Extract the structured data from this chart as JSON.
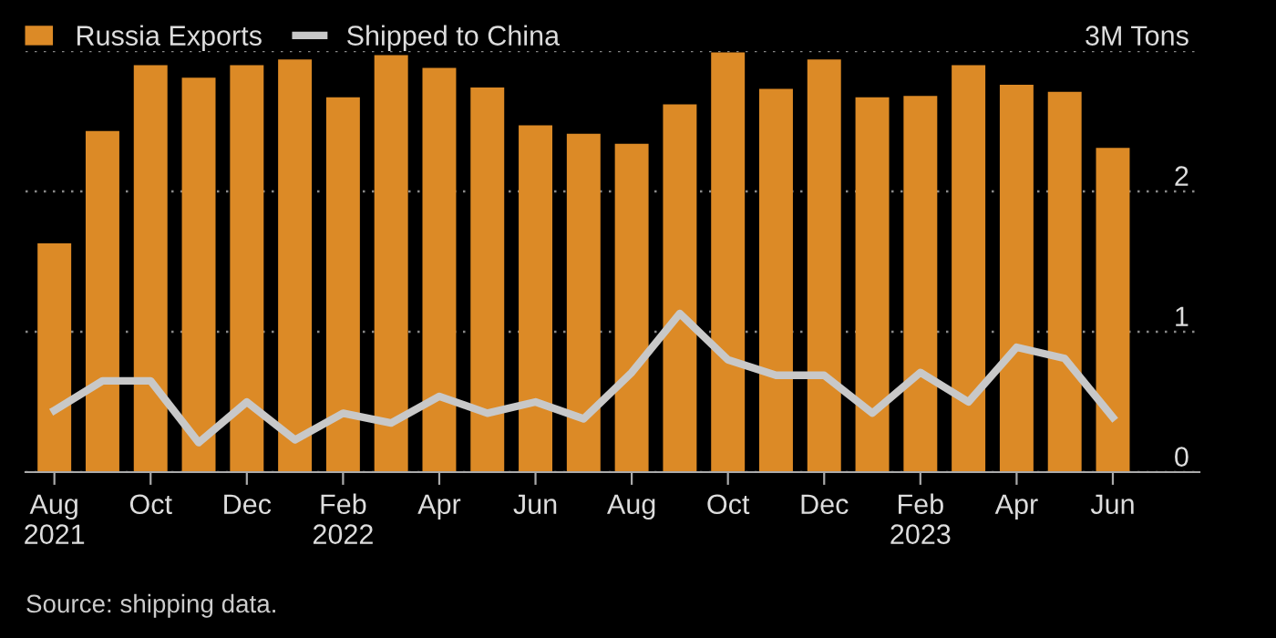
{
  "chart_data": {
    "type": "bar",
    "categories": [
      "Aug\n2021",
      null,
      "Oct",
      null,
      "Dec",
      null,
      "Feb\n2022",
      null,
      "Apr",
      null,
      "Jun",
      null,
      "Aug",
      null,
      "Oct",
      null,
      "Dec",
      null,
      "Feb\n2023",
      null,
      "Apr",
      null,
      "Jun"
    ],
    "series": [
      {
        "name": "Russia Exports",
        "color": "#dc8a26",
        "values": [
          1.63,
          2.43,
          2.9,
          2.81,
          2.9,
          2.94,
          2.67,
          2.97,
          2.88,
          2.74,
          2.47,
          2.41,
          2.34,
          2.62,
          2.99,
          2.73,
          2.94,
          2.67,
          2.68,
          2.9,
          2.76,
          2.71,
          2.31
        ]
      },
      {
        "name": "Shipped to China",
        "type": "line",
        "color": "#c8c8c8",
        "values": [
          0.44,
          0.65,
          0.65,
          0.21,
          0.5,
          0.23,
          0.42,
          0.35,
          0.54,
          0.42,
          0.5,
          0.38,
          0.71,
          1.13,
          0.8,
          0.69,
          0.69,
          0.42,
          0.71,
          0.5,
          0.89,
          0.81,
          0.39
        ]
      }
    ],
    "ylim": [
      0,
      3
    ],
    "yticks": [
      0,
      1,
      2,
      {
        "value": 3,
        "label": "3M Tons"
      }
    ],
    "grid": "y",
    "legend": "top left",
    "marker": "none",
    "line_style": "solid",
    "annotations": [
      "Source: shipping data."
    ]
  }
}
